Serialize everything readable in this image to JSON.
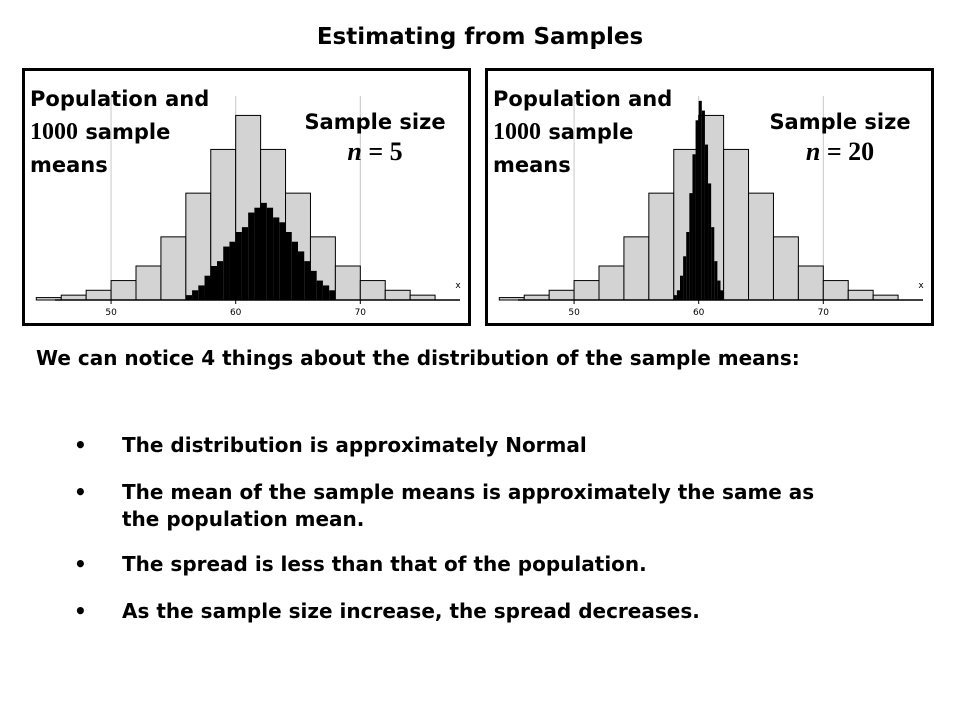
{
  "page": {
    "title": "Estimating from Samples",
    "intro": "We can notice 4 things about the distribution of the sample means:",
    "bullets": [
      "The distribution is approximately Normal",
      "The mean of the sample means is approximately the same as the population mean.",
      "The spread is less than that of the population.",
      "As the sample size increase, the spread decreases."
    ],
    "bullet_symbol": "•"
  },
  "panels": [
    {
      "label_line1": "Population and",
      "label_num": "1000",
      "label_word": "sample",
      "label_line3": "means",
      "ss_label": "Sample size",
      "n_var": "n",
      "n_eq": " = 5"
    },
    {
      "label_line1": "Population and",
      "label_num": "1000",
      "label_word": "sample",
      "label_line3": "means",
      "ss_label": "Sample size",
      "n_var": "n",
      "n_eq": " = 20"
    }
  ],
  "chart_data": [
    {
      "type": "bar",
      "x_ticks": [
        50,
        60,
        70
      ],
      "x_axis_label": "x",
      "xlim": [
        45.5,
        78
      ],
      "population": {
        "bin_edges": [
          44,
          46,
          48,
          50,
          52,
          54,
          56,
          58,
          60,
          62,
          64,
          66,
          68,
          70,
          72,
          74,
          76
        ],
        "heights": [
          0.5,
          1,
          2,
          4,
          7,
          13,
          22,
          31,
          38,
          31,
          22,
          13,
          7,
          4,
          2,
          1
        ]
      },
      "sample_means": {
        "bin_width": 0.5,
        "x_start": 56,
        "heights": [
          1,
          2,
          3,
          5,
          7,
          8,
          11,
          12,
          14,
          15,
          18,
          19,
          20,
          19,
          17,
          16,
          14,
          12,
          10,
          8,
          6,
          4,
          3,
          2
        ]
      },
      "ylim": [
        0,
        42
      ]
    },
    {
      "type": "bar",
      "x_ticks": [
        50,
        60,
        70
      ],
      "x_axis_label": "x",
      "xlim": [
        45.5,
        78
      ],
      "population": {
        "bin_edges": [
          44,
          46,
          48,
          50,
          52,
          54,
          56,
          58,
          60,
          62,
          64,
          66,
          68,
          70,
          72,
          74,
          76
        ],
        "heights": [
          0.5,
          1,
          2,
          4,
          7,
          13,
          22,
          31,
          38,
          31,
          22,
          13,
          7,
          4,
          2,
          1
        ]
      },
      "sample_means": {
        "bin_width": 0.25,
        "x_start": 58,
        "heights": [
          1,
          2,
          5,
          9,
          14,
          22,
          30,
          37,
          41,
          39,
          32,
          24,
          15,
          8,
          4,
          2
        ]
      },
      "ylim": [
        0,
        42
      ]
    }
  ]
}
